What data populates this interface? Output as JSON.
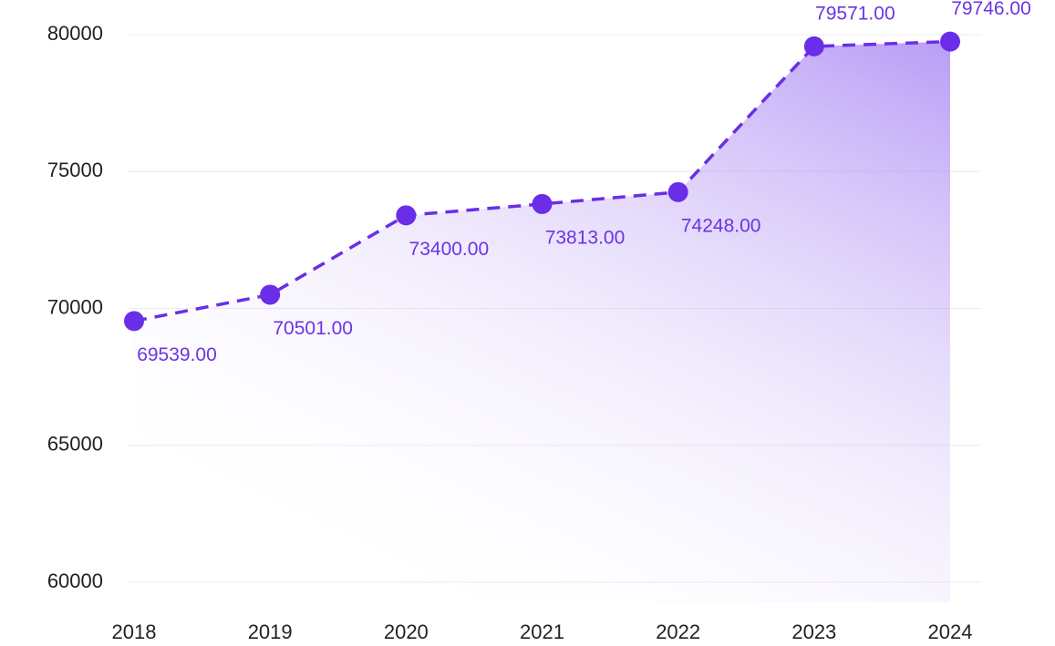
{
  "chart_data": {
    "type": "line",
    "categories": [
      "2018",
      "2019",
      "2020",
      "2021",
      "2022",
      "2023",
      "2024"
    ],
    "values": [
      69539,
      70501,
      73400,
      73813,
      74248,
      79571,
      79746
    ],
    "value_labels": [
      "69539.00",
      "70501.00",
      "73400.00",
      "73813.00",
      "74248.00",
      "79571.00",
      "79746.00"
    ],
    "color": "#6a2ee8",
    "ylim": [
      60000,
      80000
    ],
    "yticks": [
      60000,
      65000,
      70000,
      75000,
      80000
    ],
    "grid": true
  }
}
